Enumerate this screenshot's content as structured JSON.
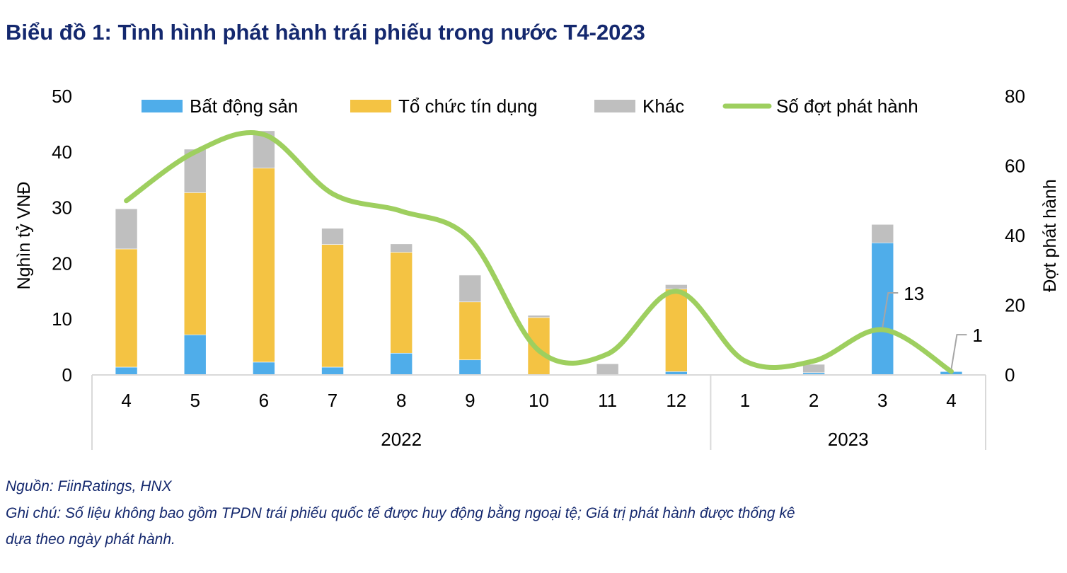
{
  "title": "Biểu đồ 1: Tình hình phát hành trái phiếu trong nước T4-2023",
  "source": "Nguồn: FiinRatings, HNX",
  "note_line1": "Ghi chú: Số liệu không bao gồm TPDN trái phiếu quốc tế được huy động bằng ngoại tệ; Giá trị phát hành được thống kê",
  "note_line2": "dựa theo ngày phát hành.",
  "chart_data": {
    "type": "bar",
    "stacked": true,
    "categories": [
      "4",
      "5",
      "6",
      "7",
      "8",
      "9",
      "10",
      "11",
      "12",
      "1",
      "2",
      "3",
      "4"
    ],
    "groups": [
      {
        "label": "2022",
        "count": 9
      },
      {
        "label": "2023",
        "count": 4
      }
    ],
    "ylabel": "Nghìn tỷ VNĐ",
    "y2label": "Đợt phát hành",
    "ylim": [
      0,
      50
    ],
    "yticks": [
      0,
      10,
      20,
      30,
      40,
      50
    ],
    "y2lim": [
      0,
      80
    ],
    "y2ticks": [
      0,
      20,
      40,
      60,
      80
    ],
    "legend_position": "top",
    "series": [
      {
        "name": "Bất động sản",
        "type": "bar",
        "color": "#4fadea",
        "values": [
          1.4,
          7.2,
          2.3,
          1.4,
          3.9,
          2.7,
          0,
          0,
          0.6,
          0.1,
          0.4,
          23.7,
          0.6
        ]
      },
      {
        "name": "Tổ chức tín dụng",
        "type": "bar",
        "color": "#f4c343",
        "values": [
          21.2,
          25.5,
          34.8,
          22.0,
          18.1,
          10.4,
          10.3,
          0,
          14.8,
          0,
          0,
          0,
          0
        ]
      },
      {
        "name": "Khác",
        "type": "bar",
        "color": "#bfbfbf",
        "values": [
          7.2,
          7.8,
          6.7,
          2.9,
          1.5,
          4.8,
          0.4,
          2.0,
          0.8,
          0,
          1.5,
          3.3,
          0
        ]
      },
      {
        "name": "Số đợt phát hành",
        "type": "line",
        "axis": "right",
        "color": "#9ecf5f",
        "smooth": true,
        "values": [
          50,
          64,
          69,
          52,
          47,
          39,
          7,
          6,
          24,
          4,
          4,
          13,
          1
        ]
      }
    ],
    "annotations": [
      {
        "category_index": 11,
        "series": "Số đợt phát hành",
        "text": "13"
      },
      {
        "category_index": 12,
        "series": "Số đợt phát hành",
        "text": "1"
      }
    ]
  }
}
